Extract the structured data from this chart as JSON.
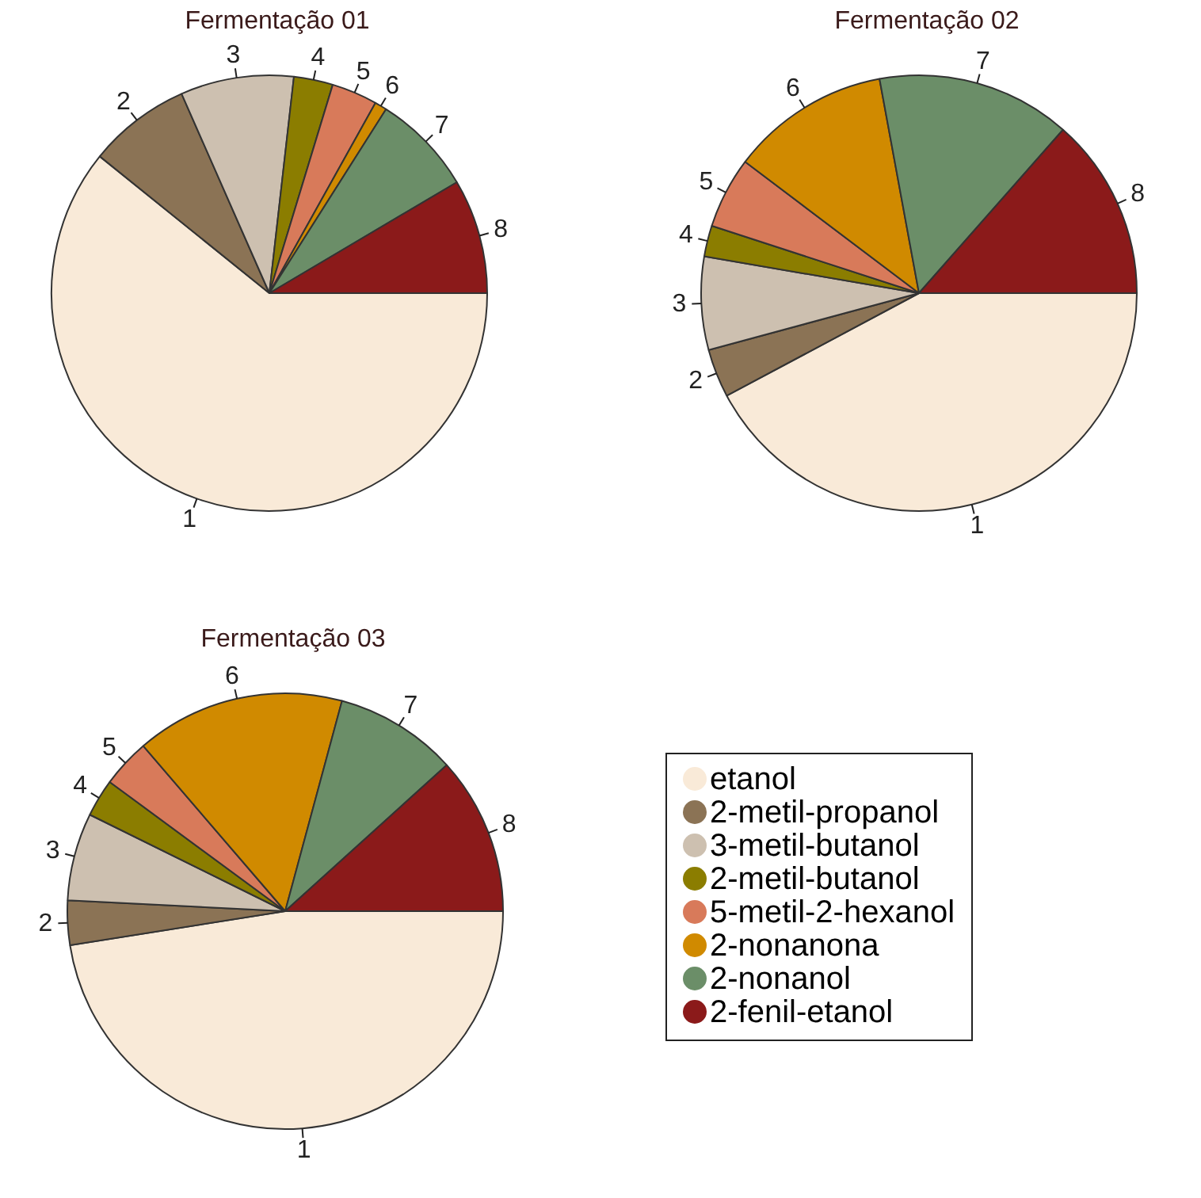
{
  "chart_data": [
    {
      "type": "pie",
      "title": "Fermentação 01",
      "categories": [
        "1",
        "2",
        "3",
        "4",
        "5",
        "6",
        "7",
        "8"
      ],
      "values": [
        60.8,
        7.6,
        8.4,
        2.9,
        3.4,
        0.9,
        7.5,
        8.5
      ],
      "colors": [
        "#f9ead8",
        "#8b7355",
        "#cdc0b0",
        "#8b7d00",
        "#d87a5a",
        "#d08a00",
        "#6b8e68",
        "#8b1a1a"
      ]
    },
    {
      "type": "pie",
      "title": "Fermentação 02",
      "categories": [
        "1",
        "2",
        "3",
        "4",
        "5",
        "6",
        "7",
        "8"
      ],
      "values": [
        42.2,
        3.6,
        6.9,
        2.3,
        5.3,
        11.8,
        14.4,
        13.5
      ],
      "colors": [
        "#f9ead8",
        "#8b7355",
        "#cdc0b0",
        "#8b7d00",
        "#d87a5a",
        "#d08a00",
        "#6b8e68",
        "#8b1a1a"
      ]
    },
    {
      "type": "pie",
      "title": "Fermentação 03",
      "categories": [
        "1",
        "2",
        "3",
        "4",
        "5",
        "6",
        "7",
        "8"
      ],
      "values": [
        47.5,
        3.3,
        6.5,
        2.8,
        3.6,
        15.5,
        9.1,
        11.7
      ],
      "colors": [
        "#f9ead8",
        "#8b7355",
        "#cdc0b0",
        "#8b7d00",
        "#d87a5a",
        "#d08a00",
        "#6b8e68",
        "#8b1a1a"
      ]
    },
    {
      "type": "other",
      "annotations": [
        "etanol",
        "2-metil-propanol",
        "3-metil-butanol",
        "2-metil-butanol",
        "5-metil-2-hexanol",
        "2-nonanona",
        "2-nonanol",
        "2-fenil-etanol"
      ],
      "colors": [
        "#f9ead8",
        "#8b7355",
        "#cdc0b0",
        "#8b7d00",
        "#d87a5a",
        "#d08a00",
        "#6b8e68",
        "#8b1a1a"
      ]
    }
  ]
}
